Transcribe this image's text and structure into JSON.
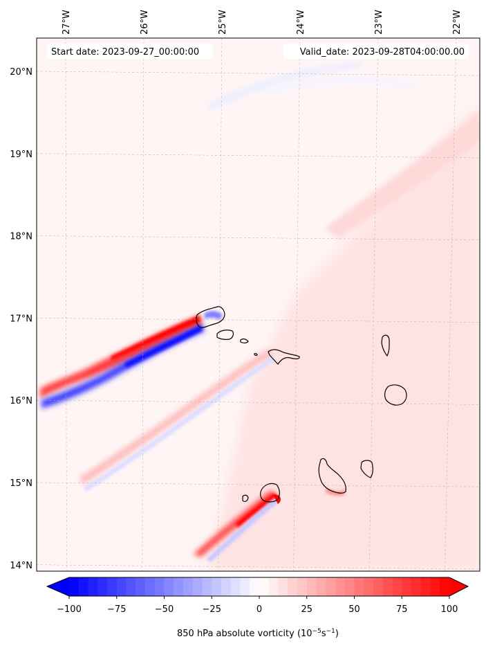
{
  "chart_data": {
    "type": "heatmap",
    "title": "",
    "annotation_left": "Start date: 2023-09-27_00:00:00",
    "annotation_right": "Valid_date: 2023-09-28T04:00:00.00",
    "lon_ticks": [
      {
        "value": -27,
        "label": "27°W"
      },
      {
        "value": -26,
        "label": "26°W"
      },
      {
        "value": -25,
        "label": "25°W"
      },
      {
        "value": -24,
        "label": "24°W"
      },
      {
        "value": -23,
        "label": "23°W"
      },
      {
        "value": -22,
        "label": "22°W"
      }
    ],
    "lat_ticks": [
      {
        "value": 14,
        "label": "14°N"
      },
      {
        "value": 15,
        "label": "15°N"
      },
      {
        "value": 16,
        "label": "16°N"
      },
      {
        "value": 17,
        "label": "17°N"
      },
      {
        "value": 18,
        "label": "18°N"
      },
      {
        "value": 19,
        "label": "19°N"
      },
      {
        "value": 20,
        "label": "20°N"
      }
    ],
    "lon_range": [
      -27.35,
      -21.7
    ],
    "lat_range": [
      13.95,
      20.45
    ],
    "colorbar": {
      "min": -100,
      "max": 100,
      "step": 5,
      "extend": "both",
      "ticks": [
        {
          "value": -100,
          "label": "−100"
        },
        {
          "value": -75,
          "label": "−75"
        },
        {
          "value": -50,
          "label": "−50"
        },
        {
          "value": -25,
          "label": "−25"
        },
        {
          "value": 0,
          "label": "0"
        },
        {
          "value": 25,
          "label": "25"
        },
        {
          "value": 50,
          "label": "50"
        },
        {
          "value": 75,
          "label": "75"
        },
        {
          "value": 100,
          "label": "100"
        }
      ],
      "label_main": "850 hPa absolute vorticity (10",
      "label_sup1": "−5",
      "label_mid": "s",
      "label_sup2": "−1",
      "label_end": ")",
      "colors": {
        "negative": "#0000ff",
        "zero": "#ffffff",
        "positive": "#ff0000"
      }
    },
    "field_features": [
      {
        "name": "background",
        "value": 8
      },
      {
        "name": "east-positive-zone",
        "value": 20
      },
      {
        "name": "northeast-band",
        "value": 25
      },
      {
        "name": "north-weak-negative",
        "value": -12
      },
      {
        "name": "santo-antao-wake-positive",
        "value": 75
      },
      {
        "name": "santo-antao-wake-negative",
        "value": -70
      },
      {
        "name": "sao-nicolau-wake-positive",
        "value": 35
      },
      {
        "name": "sao-nicolau-wake-negative",
        "value": -20
      },
      {
        "name": "fogo-wake-positive",
        "value": 80
      },
      {
        "name": "fogo-wake-negative",
        "value": -25
      }
    ],
    "islands": [
      "Santo Antão",
      "São Vicente",
      "Santa Luzia",
      "São Nicolau",
      "Sal",
      "Boa Vista",
      "Maio",
      "Santiago",
      "Fogo",
      "Brava"
    ]
  }
}
